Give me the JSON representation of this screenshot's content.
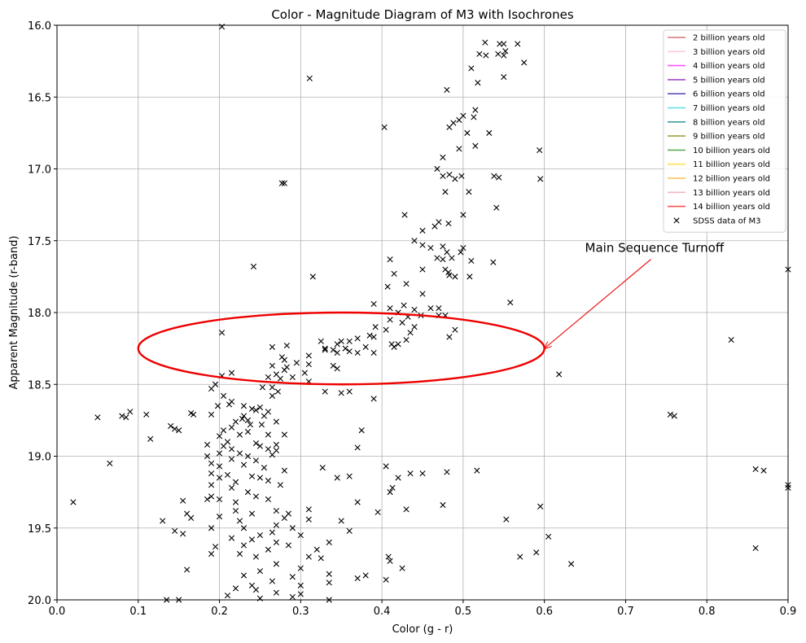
{
  "chart_data": {
    "type": "scatter",
    "title": "Color - Magnitude Diagram of M3 with Isochrones",
    "x_label": "Color (g - r)",
    "y_label": "Apparent Magnitude (r-band)",
    "xlim": [
      0,
      0.9
    ],
    "ylim": [
      16,
      20
    ],
    "y_inverted": true,
    "grid": true,
    "legend": "upper right",
    "xticks": [
      {
        "value": 0,
        "label": "0.0"
      },
      0.1,
      0.2,
      0.3,
      0.4,
      0.5,
      0.6,
      0.7,
      0.8,
      0.9
    ],
    "yticks": [
      {
        "value": 16,
        "label": "16.0"
      },
      16.5,
      {
        "value": 17,
        "label": "17.0"
      },
      17.5,
      {
        "value": 18,
        "label": "18.0"
      },
      18.5,
      {
        "value": 19,
        "label": "19.0"
      },
      19.5,
      {
        "value": 20,
        "label": "20.0"
      }
    ],
    "series": [
      {
        "name": "2 billion years old",
        "color": "#d9737c",
        "marker": "line",
        "x": [],
        "y": []
      },
      {
        "name": "3 billion years old",
        "color": "#ffc8d8",
        "marker": "line",
        "x": [],
        "y": []
      },
      {
        "name": "4 billion years old",
        "color": "#ff55ff",
        "marker": "line",
        "x": [],
        "y": []
      },
      {
        "name": "5 billion years old",
        "color": "#a04cc4",
        "marker": "line",
        "x": [],
        "y": []
      },
      {
        "name": "6 billion years old",
        "color": "#5a50b8",
        "marker": "line",
        "x": [],
        "y": []
      },
      {
        "name": "7 billion years old",
        "color": "#5ee0e0",
        "marker": "line",
        "x": [],
        "y": []
      },
      {
        "name": "8 billion years old",
        "color": "#3aa0a0",
        "marker": "line",
        "x": [],
        "y": []
      },
      {
        "name": "9 billion years old",
        "color": "#a0a040",
        "marker": "line",
        "x": [],
        "y": []
      },
      {
        "name": "10 billion years old",
        "color": "#5cac5c",
        "marker": "line",
        "x": [],
        "y": []
      },
      {
        "name": "11 billion years old",
        "color": "#ffe055",
        "marker": "line",
        "x": [],
        "y": []
      },
      {
        "name": "12 billion years old",
        "color": "#ffc050",
        "marker": "line",
        "x": [],
        "y": []
      },
      {
        "name": "13 billion years old",
        "color": "#f4b4c0",
        "marker": "line",
        "x": [],
        "y": []
      },
      {
        "name": "14 billion years old",
        "color": "#ff5050",
        "marker": "line",
        "x": [],
        "y": []
      },
      {
        "name": "SDSS data of M3",
        "color": "#000000",
        "marker": "x",
        "x": [
          0.203,
          0.527,
          0.545,
          0.55,
          0.567,
          0.52,
          0.528,
          0.543,
          0.55,
          0.552,
          0.575,
          0.51,
          0.518,
          0.55,
          0.311,
          0.48,
          0.515,
          0.513,
          0.5,
          0.495,
          0.403,
          0.483,
          0.488,
          0.505,
          0.532,
          0.515,
          0.495,
          0.475,
          0.594,
          0.468,
          0.475,
          0.483,
          0.49,
          0.498,
          0.538,
          0.544,
          0.595,
          0.28,
          0.478,
          0.507,
          0.277,
          0.541,
          0.428,
          0.5,
          0.47,
          0.465,
          0.45,
          0.482,
          0.44,
          0.45,
          0.46,
          0.475,
          0.48,
          0.5,
          0.497,
          0.486,
          0.475,
          0.468,
          0.51,
          0.537,
          0.242,
          0.41,
          0.45,
          0.478,
          0.482,
          0.49,
          0.483,
          0.508,
          0.315,
          0.415,
          0.9,
          0.407,
          0.43,
          0.45,
          0.558,
          0.39,
          0.427,
          0.41,
          0.44,
          0.46,
          0.47,
          0.448,
          0.42,
          0.432,
          0.47,
          0.478,
          0.41,
          0.425,
          0.392,
          0.44,
          0.49,
          0.405,
          0.203,
          0.435,
          0.483,
          0.385,
          0.39,
          0.43,
          0.37,
          0.36,
          0.325,
          0.345,
          0.35,
          0.412,
          0.415,
          0.42,
          0.38,
          0.355,
          0.33,
          0.34,
          0.265,
          0.283,
          0.37,
          0.39,
          0.36,
          0.345,
          0.33,
          0.31,
          0.277,
          0.28,
          0.31,
          0.295,
          0.34,
          0.345,
          0.28,
          0.283,
          0.265,
          0.27,
          0.305,
          0.26,
          0.275,
          0.29,
          0.215,
          0.203,
          0.253,
          0.265,
          0.31,
          0.33,
          0.35,
          0.36,
          0.272,
          0.618,
          0.83,
          0.195,
          0.19,
          0.205,
          0.265,
          0.215,
          0.212,
          0.39,
          0.198,
          0.23,
          0.24,
          0.245,
          0.25,
          0.255,
          0.26,
          0.09,
          0.08,
          0.085,
          0.05,
          0.11,
          0.165,
          0.168,
          0.19,
          0.228,
          0.23,
          0.235,
          0.22,
          0.238,
          0.252,
          0.27,
          0.215,
          0.14,
          0.15,
          0.145,
          0.205,
          0.235,
          0.26,
          0.28,
          0.225,
          0.375,
          0.2,
          0.115,
          0.21,
          0.245,
          0.25,
          0.27,
          0.185,
          0.205,
          0.215,
          0.26,
          0.27,
          0.37,
          0.2,
          0.225,
          0.235,
          0.265,
          0.185,
          0.215,
          0.245,
          0.755,
          0.76,
          0.065,
          0.19,
          0.2,
          0.23,
          0.255,
          0.28,
          0.405,
          0.327,
          0.19,
          0.21,
          0.2,
          0.24,
          0.25,
          0.22,
          0.26,
          0.275,
          0.345,
          0.36,
          0.42,
          0.435,
          0.45,
          0.48,
          0.517,
          0.86,
          0.87,
          0.9,
          0.9,
          0.413,
          0.41,
          0.19,
          0.215,
          0.235,
          0.245,
          0.19,
          0.2,
          0.185,
          0.22,
          0.26,
          0.155,
          0.02,
          0.37,
          0.475,
          0.595,
          0.43,
          0.395,
          0.16,
          0.22,
          0.24,
          0.27,
          0.285,
          0.31,
          0.2,
          0.165,
          0.13,
          0.28,
          0.31,
          0.35,
          0.553,
          0.225,
          0.27,
          0.29,
          0.19,
          0.23,
          0.145,
          0.155,
          0.36,
          0.265,
          0.3,
          0.25,
          0.215,
          0.24,
          0.27,
          0.335,
          0.285,
          0.23,
          0.605,
          0.195,
          0.26,
          0.32,
          0.225,
          0.19,
          0.245,
          0.31,
          0.325,
          0.57,
          0.59,
          0.86,
          0.633,
          0.41,
          0.408,
          0.425,
          0.16,
          0.27,
          0.3,
          0.25,
          0.23,
          0.38,
          0.37,
          0.29,
          0.335,
          0.265,
          0.24,
          0.3,
          0.335,
          0.405,
          0.245,
          0.22,
          0.27,
          0.3,
          0.21,
          0.29,
          0.135,
          0.15,
          0.25,
          0.335
        ],
        "y": [
          16.01,
          16.12,
          16.13,
          16.13,
          16.13,
          16.2,
          16.21,
          16.2,
          16.21,
          16.18,
          16.26,
          16.3,
          16.4,
          16.36,
          16.37,
          16.45,
          16.59,
          16.64,
          16.63,
          16.66,
          16.71,
          16.71,
          16.68,
          16.75,
          16.75,
          16.84,
          16.86,
          16.92,
          16.87,
          17.0,
          17.05,
          17.04,
          17.07,
          17.05,
          17.05,
          17.06,
          17.07,
          17.1,
          17.16,
          17.16,
          17.1,
          17.27,
          17.32,
          17.32,
          17.37,
          17.4,
          17.43,
          17.38,
          17.5,
          17.53,
          17.55,
          17.54,
          17.58,
          17.55,
          17.58,
          17.62,
          17.63,
          17.62,
          17.64,
          17.65,
          17.68,
          17.63,
          17.7,
          17.7,
          17.72,
          17.75,
          17.74,
          17.75,
          17.75,
          17.73,
          17.7,
          17.82,
          17.8,
          17.87,
          17.93,
          17.94,
          17.95,
          17.97,
          17.98,
          17.97,
          17.97,
          18.02,
          18.0,
          18.03,
          18.02,
          18.02,
          18.05,
          18.07,
          18.1,
          18.1,
          18.12,
          18.12,
          18.14,
          18.14,
          18.17,
          18.16,
          18.17,
          18.19,
          18.18,
          18.2,
          18.2,
          18.22,
          18.2,
          18.22,
          18.24,
          18.22,
          18.24,
          18.25,
          18.25,
          18.26,
          18.24,
          18.23,
          18.28,
          18.28,
          18.27,
          18.28,
          18.26,
          18.3,
          18.31,
          18.33,
          18.36,
          18.35,
          18.37,
          18.39,
          18.4,
          18.38,
          18.37,
          18.43,
          18.42,
          18.45,
          18.46,
          18.45,
          18.42,
          18.44,
          18.52,
          18.52,
          18.48,
          18.55,
          18.56,
          18.55,
          18.55,
          18.43,
          18.19,
          18.5,
          18.53,
          18.58,
          18.58,
          18.62,
          18.64,
          18.6,
          18.65,
          18.65,
          18.67,
          18.68,
          18.66,
          18.72,
          18.69,
          18.69,
          18.72,
          18.73,
          18.73,
          18.71,
          18.7,
          18.71,
          18.71,
          18.74,
          18.72,
          18.75,
          18.76,
          18.78,
          18.78,
          18.76,
          18.8,
          18.79,
          18.82,
          18.81,
          18.82,
          18.83,
          18.85,
          18.85,
          18.85,
          18.82,
          18.86,
          18.88,
          18.9,
          18.91,
          18.93,
          18.92,
          18.92,
          18.93,
          18.95,
          18.95,
          18.96,
          18.94,
          18.98,
          18.98,
          19.0,
          18.99,
          19.0,
          19.02,
          19.03,
          18.71,
          18.72,
          19.05,
          19.05,
          19.07,
          19.06,
          19.08,
          19.1,
          19.07,
          19.08,
          19.12,
          19.13,
          19.15,
          19.14,
          19.15,
          19.18,
          19.17,
          19.2,
          19.15,
          19.14,
          19.15,
          19.12,
          19.12,
          19.11,
          19.1,
          19.09,
          19.1,
          19.2,
          19.22,
          19.22,
          19.25,
          19.2,
          19.22,
          19.25,
          19.28,
          19.28,
          19.3,
          19.3,
          19.32,
          19.3,
          19.31,
          19.32,
          19.32,
          19.34,
          19.35,
          19.37,
          19.39,
          19.4,
          19.38,
          19.4,
          19.38,
          19.4,
          19.37,
          19.42,
          19.43,
          19.45,
          19.43,
          19.44,
          19.45,
          19.44,
          19.45,
          19.48,
          19.5,
          19.5,
          19.5,
          19.52,
          19.54,
          19.52,
          19.53,
          19.55,
          19.55,
          19.57,
          19.58,
          19.6,
          19.6,
          19.62,
          19.62,
          19.56,
          19.63,
          19.65,
          19.65,
          19.68,
          19.68,
          19.7,
          19.7,
          19.71,
          19.7,
          19.67,
          19.64,
          19.75,
          19.73,
          19.7,
          19.78,
          19.79,
          19.75,
          19.78,
          19.8,
          19.83,
          19.83,
          19.85,
          19.84,
          19.82,
          19.87,
          19.9,
          19.9,
          19.88,
          19.86,
          19.93,
          19.92,
          19.95,
          19.96,
          19.97,
          19.98,
          20.0,
          20.0,
          19.99,
          20.0
        ]
      }
    ],
    "ellipse": {
      "center": [
        0.35,
        18.25
      ],
      "width": 0.5,
      "height": 0.5,
      "color": "#ee0000"
    },
    "annotation": {
      "text": "Main Sequence Turnoff",
      "xy": [
        0.6,
        18.25
      ],
      "xytext": [
        0.65,
        17.55
      ],
      "color": "#ee0000"
    }
  }
}
